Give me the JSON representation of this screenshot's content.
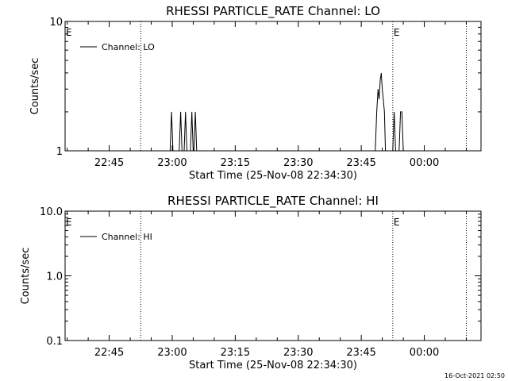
{
  "footer_timestamp": "16-Oct-2021 02:50",
  "chart_data": [
    {
      "type": "line",
      "title": "RHESSI PARTICLE_RATE Channel: LO",
      "xlabel": "Start Time (25-Nov-08 22:34:30)",
      "ylabel": "Counts/sec",
      "y_scale": "log",
      "ylim": [
        1,
        10
      ],
      "xlim": [
        "22:34:30",
        "00:13:30"
      ],
      "x_ticks": [
        "22:45",
        "23:00",
        "23:15",
        "23:30",
        "23:45",
        "00:00"
      ],
      "y_ticks": [
        "1",
        "10"
      ],
      "legend": {
        "position": "top-left",
        "entries": [
          "Channel: LO"
        ]
      },
      "markers": [
        {
          "label": "E",
          "x": "22:34:30"
        },
        {
          "label": "",
          "x": "22:52:30"
        },
        {
          "label": "E",
          "x": "23:52:30"
        },
        {
          "label": "",
          "x": "00:10:00"
        }
      ],
      "series": [
        {
          "name": "Channel: LO",
          "points": [
            [
              "22:59:30",
              1
            ],
            [
              "22:59:50",
              2
            ],
            [
              "23:00:10",
              1
            ],
            [
              "23:01:40",
              1
            ],
            [
              "23:02:00",
              2
            ],
            [
              "23:02:20",
              1
            ],
            [
              "23:02:50",
              1
            ],
            [
              "23:03:10",
              2
            ],
            [
              "23:03:30",
              1
            ],
            [
              "23:04:20",
              1
            ],
            [
              "23:04:40",
              2
            ],
            [
              "23:05:00",
              1
            ],
            [
              "23:05:10",
              1
            ],
            [
              "23:05:30",
              2
            ],
            [
              "23:05:50",
              1
            ],
            [
              "23:48:20",
              1
            ],
            [
              "23:48:40",
              2
            ],
            [
              "23:49:00",
              3
            ],
            [
              "23:49:15",
              2.5
            ],
            [
              "23:49:30",
              3.5
            ],
            [
              "23:49:45",
              4
            ],
            [
              "23:50:00",
              3
            ],
            [
              "23:50:15",
              2.5
            ],
            [
              "23:50:30",
              2
            ],
            [
              "23:50:45",
              1
            ],
            [
              "23:52:30",
              1
            ],
            [
              "23:52:50",
              2
            ],
            [
              "23:53:10",
              1
            ],
            [
              "23:54:00",
              1
            ],
            [
              "23:54:20",
              2
            ],
            [
              "23:54:40",
              2
            ],
            [
              "23:55:00",
              1
            ]
          ]
        }
      ]
    },
    {
      "type": "line",
      "title": "RHESSI PARTICLE_RATE Channel: HI",
      "xlabel": "Start Time (25-Nov-08 22:34:30)",
      "ylabel": "Counts/sec",
      "y_scale": "log",
      "ylim": [
        0.1,
        10
      ],
      "xlim": [
        "22:34:30",
        "00:13:30"
      ],
      "x_ticks": [
        "22:45",
        "23:00",
        "23:15",
        "23:30",
        "23:45",
        "00:00"
      ],
      "y_ticks": [
        "0.1",
        "1.0",
        "10.0"
      ],
      "legend": {
        "position": "top-left",
        "entries": [
          "Channel: HI"
        ]
      },
      "markers": [
        {
          "label": "E",
          "x": "22:34:30"
        },
        {
          "label": "",
          "x": "22:52:30"
        },
        {
          "label": "E",
          "x": "23:52:30"
        },
        {
          "label": "",
          "x": "00:10:00"
        }
      ],
      "series": [
        {
          "name": "Channel: HI",
          "points": []
        }
      ]
    }
  ]
}
